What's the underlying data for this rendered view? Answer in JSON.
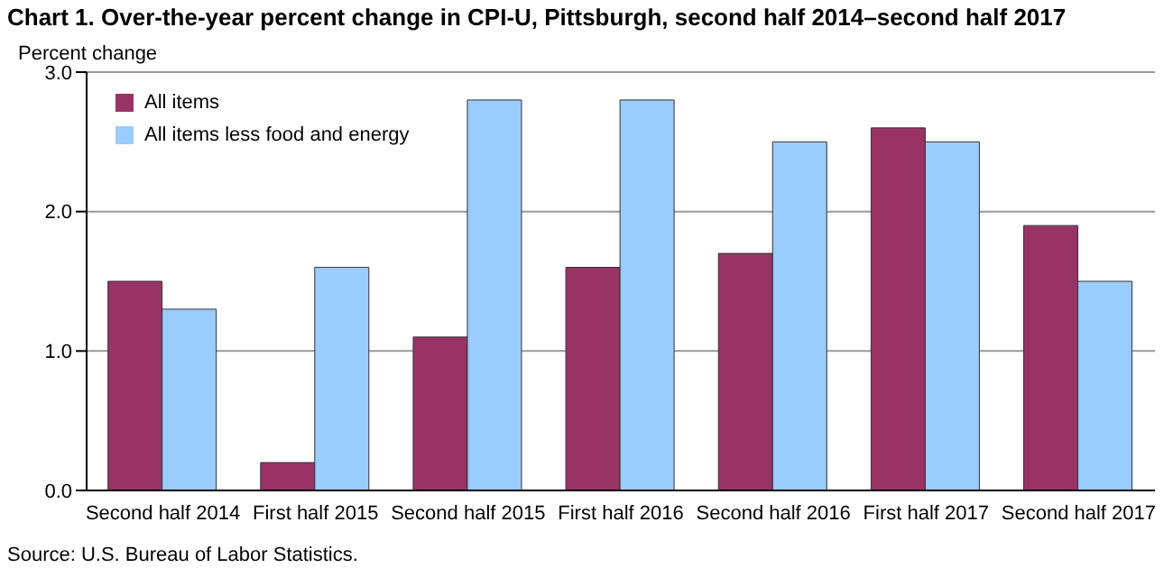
{
  "chart_data": {
    "type": "bar",
    "title": "Chart 1. Over-the-year percent change in CPI-U, Pittsburgh, second half 2014–second half 2017",
    "ylabel": "Percent change",
    "categories": [
      "Second half 2014",
      "First half 2015",
      "Second half 2015",
      "First half 2016",
      "Second half 2016",
      "First half 2017",
      "Second half 2017"
    ],
    "series": [
      {
        "name": "All items",
        "color": "#993366",
        "values": [
          1.5,
          0.2,
          1.1,
          1.6,
          1.7,
          2.6,
          1.9
        ]
      },
      {
        "name": "All items less food and energy",
        "color": "#99ccff",
        "values": [
          1.3,
          1.6,
          2.8,
          2.8,
          2.5,
          2.5,
          1.5
        ]
      }
    ],
    "ylim": [
      0,
      3
    ],
    "yticks": [
      {
        "value": 0,
        "label": "0.0"
      },
      {
        "value": 1,
        "label": "1.0"
      },
      {
        "value": 2,
        "label": "2.0"
      },
      {
        "value": 3,
        "label": "3.0"
      }
    ],
    "grid": "y",
    "legend": "top left",
    "annotations": [
      "Source: U.S. Bureau of Labor Statistics."
    ]
  }
}
